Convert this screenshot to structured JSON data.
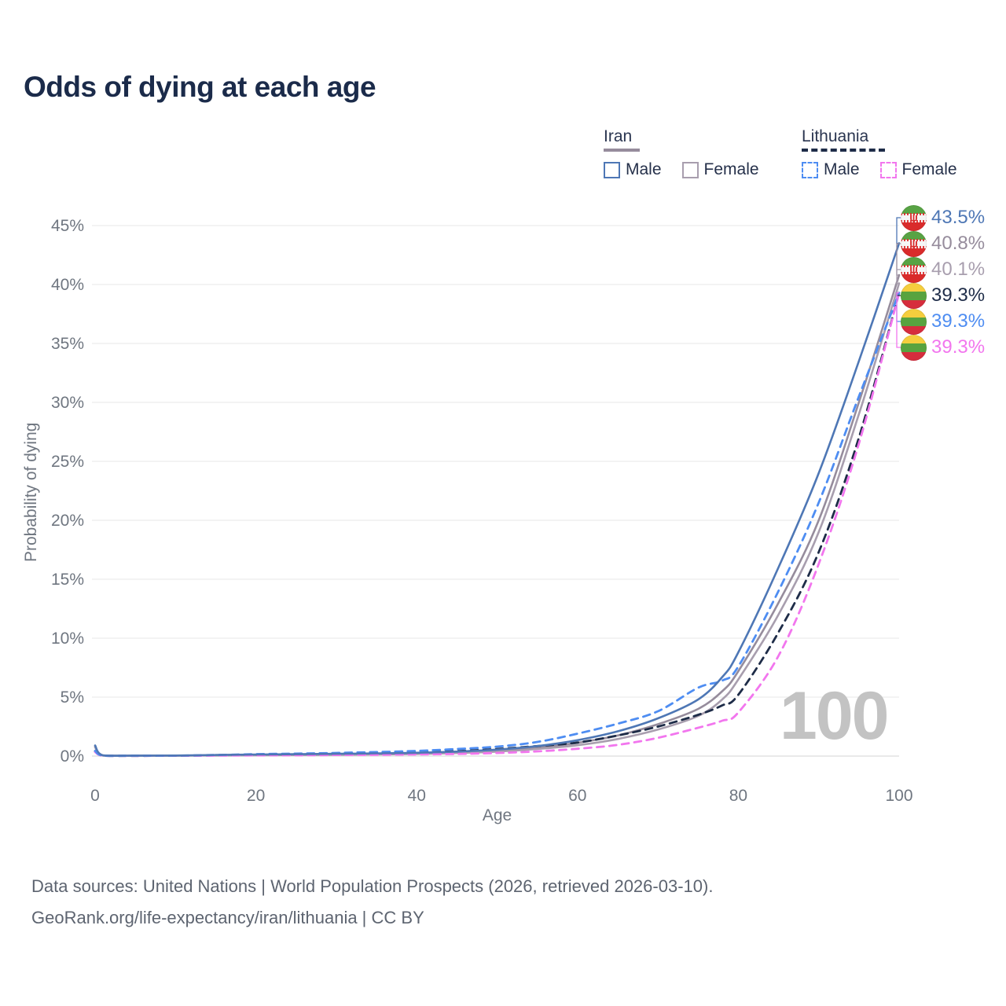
{
  "title": "Odds of dying at each age",
  "watermark": "100",
  "legend": {
    "iran": {
      "name": "Iran",
      "male_label": "Male",
      "female_label": "Female"
    },
    "lithuania": {
      "name": "Lithuania",
      "male_label": "Male",
      "female_label": "Female"
    }
  },
  "colors": {
    "iran_male": "#4e77b5",
    "iran_both": "#968c9c",
    "iran_female": "#a89eae",
    "lithuania_both": "#1e2c48",
    "lithuania_male": "#4e8df2",
    "lithuania_female": "#f276ee",
    "grid": "#ececec",
    "grid_zero": "#dcdcdc",
    "axis_text": "#6f7680",
    "title_text": "#1b2b4a",
    "watermark": "#c3c3c3",
    "footer_text": "#5d6470"
  },
  "footer": {
    "line1": "Data sources: United Nations | World Population Prospects (2026, retrieved 2026-03-10).",
    "line2": "GeoRank.org/life-expectancy/iran/lithuania | CC BY"
  },
  "chart_data": {
    "type": "line",
    "xlabel": "Age",
    "ylabel": "Probability of dying",
    "xlim": [
      0,
      100
    ],
    "ylim": [
      0,
      45
    ],
    "xticks": [
      0,
      20,
      40,
      60,
      80,
      100
    ],
    "yticks": [
      0,
      5,
      10,
      15,
      20,
      25,
      30,
      35,
      40,
      45
    ],
    "ytick_suffix": "%",
    "legend_position": "top-right",
    "grid": "horizontal",
    "x": [
      0,
      1,
      5,
      10,
      15,
      20,
      25,
      30,
      35,
      40,
      45,
      50,
      55,
      60,
      65,
      70,
      75,
      78,
      80,
      85,
      90,
      95,
      100
    ],
    "series": [
      {
        "name": "Iran Male",
        "flag": "iran",
        "dash": "solid",
        "color_key": "iran_male",
        "end_label": "43.5%",
        "values": [
          0.9,
          0.06,
          0.04,
          0.05,
          0.09,
          0.13,
          0.16,
          0.19,
          0.23,
          0.28,
          0.38,
          0.55,
          0.85,
          1.35,
          2.1,
          3.2,
          4.8,
          6.7,
          8.8,
          16.0,
          24.0,
          33.5,
          43.5
        ]
      },
      {
        "name": "Iran Both sexes",
        "flag": "iran",
        "dash": "solid",
        "color_key": "iran_both",
        "end_label": "40.8%",
        "values": [
          0.82,
          0.05,
          0.04,
          0.04,
          0.07,
          0.1,
          0.13,
          0.15,
          0.19,
          0.23,
          0.31,
          0.46,
          0.72,
          1.12,
          1.75,
          2.7,
          4.0,
          5.5,
          7.2,
          13.0,
          20.0,
          30.0,
          40.8
        ]
      },
      {
        "name": "Iran Female",
        "flag": "iran",
        "dash": "solid",
        "color_key": "iran_female",
        "end_label": "40.1%",
        "values": [
          0.75,
          0.05,
          0.03,
          0.04,
          0.05,
          0.07,
          0.09,
          0.11,
          0.14,
          0.18,
          0.26,
          0.38,
          0.6,
          0.92,
          1.45,
          2.25,
          3.4,
          4.8,
          6.5,
          12.0,
          19.0,
          29.0,
          40.1
        ]
      },
      {
        "name": "Lithuania Both sexes",
        "flag": "lithuania",
        "dash": "dashed",
        "color_key": "lithuania_both",
        "end_label": "39.3%",
        "values": [
          0.4,
          0.03,
          0.02,
          0.03,
          0.06,
          0.1,
          0.13,
          0.17,
          0.22,
          0.3,
          0.42,
          0.6,
          0.85,
          1.15,
          1.75,
          2.5,
          3.5,
          4.3,
          5.2,
          10.5,
          17.3,
          27.0,
          39.3
        ]
      },
      {
        "name": "Lithuania Male",
        "flag": "lithuania",
        "dash": "dashed",
        "color_key": "lithuania_male",
        "end_label": "39.3%",
        "values": [
          0.45,
          0.04,
          0.03,
          0.04,
          0.09,
          0.16,
          0.21,
          0.27,
          0.34,
          0.44,
          0.6,
          0.8,
          1.2,
          1.9,
          2.75,
          3.8,
          5.8,
          6.4,
          7.6,
          14.0,
          21.5,
          30.5,
          39.3
        ]
      },
      {
        "name": "Lithuania Female",
        "flag": "lithuania",
        "dash": "dashed",
        "color_key": "lithuania_female",
        "end_label": "39.3%",
        "values": [
          0.35,
          0.03,
          0.02,
          0.03,
          0.04,
          0.06,
          0.07,
          0.09,
          0.11,
          0.14,
          0.18,
          0.26,
          0.4,
          0.62,
          0.95,
          1.55,
          2.4,
          3.0,
          3.7,
          8.5,
          16.3,
          26.5,
          39.3
        ]
      }
    ],
    "draw_order": [
      1,
      2,
      3,
      5,
      4,
      0
    ]
  }
}
